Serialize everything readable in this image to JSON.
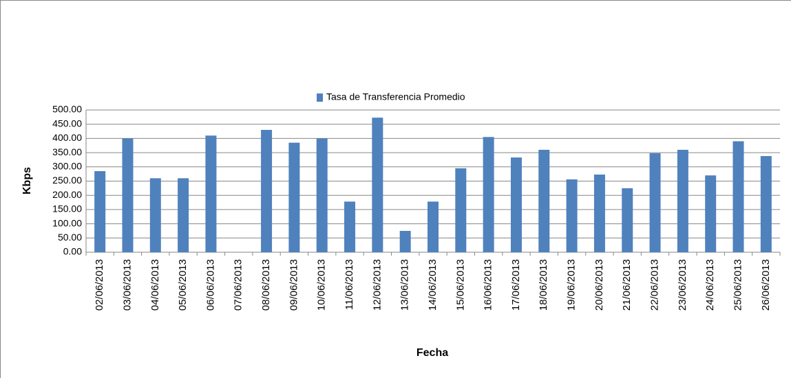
{
  "chart_data": {
    "type": "bar",
    "legend": "Tasa de Transferencia Promedio",
    "x_label": "Fecha",
    "y_label": "Kbps",
    "categories": [
      "02/06/2013",
      "03/06/2013",
      "04/06/2013",
      "05/06/2013",
      "06/06/2013",
      "07/06/2013",
      "08/06/2013",
      "09/06/2013",
      "10/06/2013",
      "11/06/2013",
      "12/06/2013",
      "13/06/2013",
      "14/06/2013",
      "15/06/2013",
      "16/06/2013",
      "17/06/2013",
      "18/06/2013",
      "19/06/2013",
      "20/06/2013",
      "21/06/2013",
      "22/06/2013",
      "23/06/2013",
      "24/06/2013",
      "25/06/2013",
      "26/06/2013"
    ],
    "values": [
      285,
      400,
      260,
      260,
      410,
      0,
      430,
      385,
      400,
      178,
      473,
      75,
      178,
      295,
      405,
      333,
      360,
      256,
      273,
      225,
      348,
      360,
      270,
      390,
      338
    ],
    "color": "#4f81bd",
    "ylim": [
      0,
      500
    ],
    "yticks": [
      {
        "value": 0,
        "label": "0.00"
      },
      {
        "value": 50,
        "label": "50.00"
      },
      {
        "value": 100,
        "label": "100.00"
      },
      {
        "value": 150,
        "label": "150.00"
      },
      {
        "value": 200,
        "label": "200.00"
      },
      {
        "value": 250,
        "label": "250.00"
      },
      {
        "value": 300,
        "label": "300.00"
      },
      {
        "value": 350,
        "label": "350.00"
      },
      {
        "value": 400,
        "label": "400.00"
      },
      {
        "value": 450,
        "label": "450.00"
      },
      {
        "value": 500,
        "label": "500.00"
      }
    ],
    "grid": true
  }
}
